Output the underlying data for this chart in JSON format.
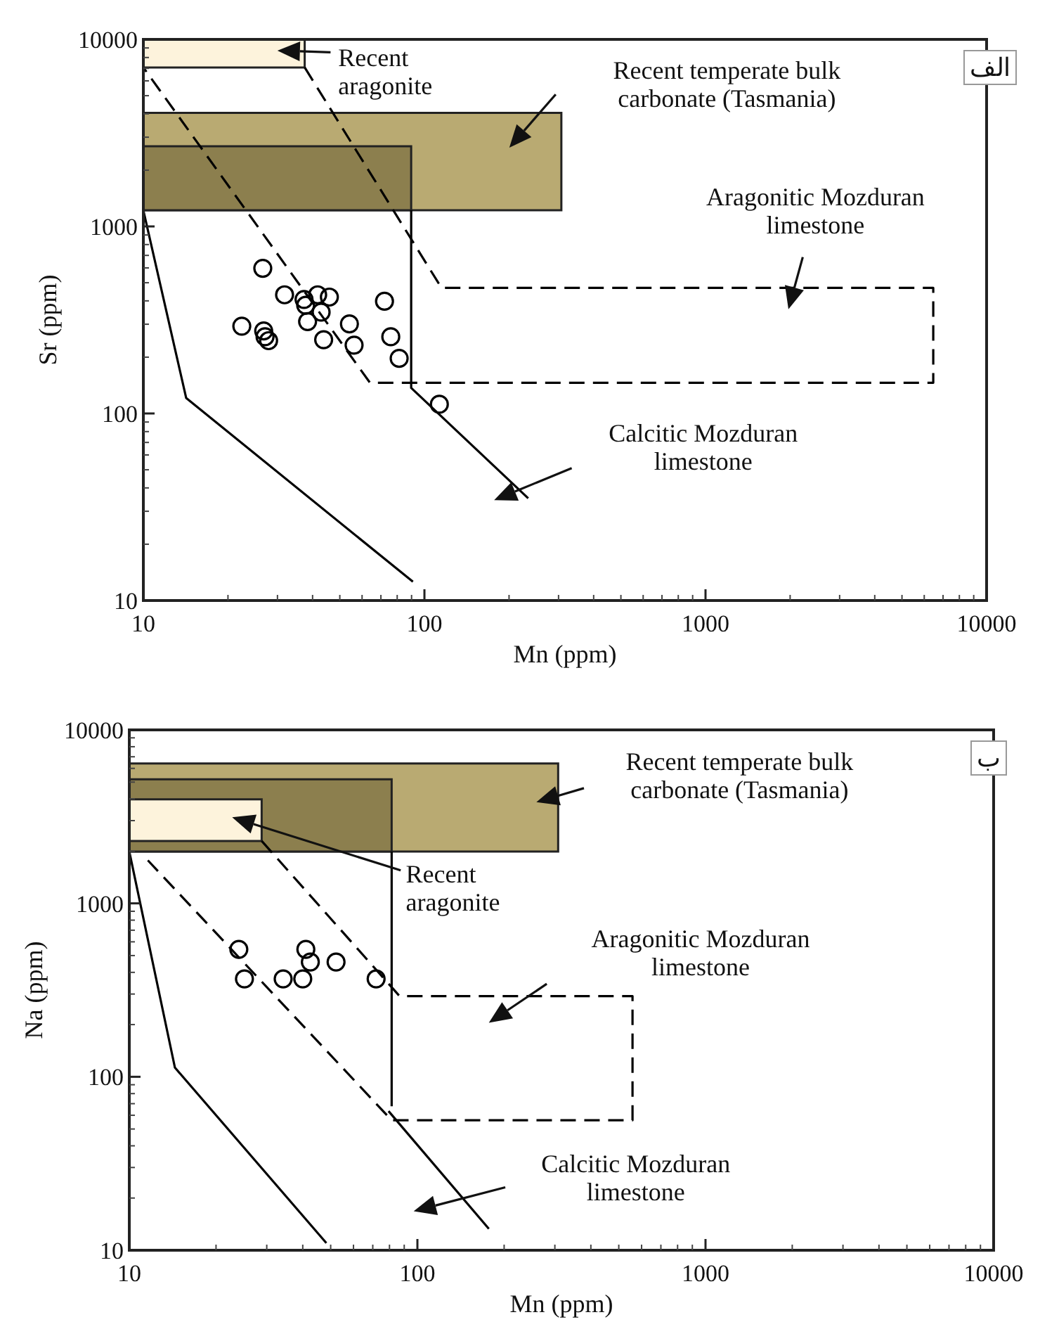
{
  "chart_data": [
    {
      "type": "scatter",
      "xlabel": "Mn (ppm)",
      "ylabel": "Sr (ppm)",
      "log": "xy",
      "xlim": [
        10,
        10000
      ],
      "ylim": [
        10,
        10000
      ],
      "xticks": [
        10,
        100,
        1000,
        10000
      ],
      "yticks": [
        10,
        100,
        1000,
        10000
      ],
      "series": [
        {
          "type": "area",
          "color": "#b9aa72",
          "x": [
            10,
            307,
            307,
            10
          ],
          "values": [
            1220,
            1220,
            4050,
            4050
          ]
        },
        {
          "type": "area",
          "color": "#8c7f4e",
          "x": [
            10,
            89.7,
            89.7,
            10
          ],
          "values": [
            1220,
            1220,
            2680,
            2680
          ]
        },
        {
          "type": "area",
          "color": "#fdf3dc",
          "x": [
            10,
            37.5,
            37.5,
            10
          ],
          "values": [
            7080,
            7080,
            10000,
            10000
          ]
        },
        {
          "type": "line",
          "color": "#000000",
          "line_style": "dashed",
          "x": [
            37.5,
            115,
            6460,
            6460,
            64,
            10
          ],
          "values": [
            7080,
            469,
            469,
            146,
            146,
            7080
          ]
        },
        {
          "type": "line",
          "color": "#000000",
          "line_style": "solid",
          "x": [
            10,
            14.2,
            91
          ],
          "values": [
            1220,
            121,
            12.6
          ]
        },
        {
          "type": "line",
          "color": "#000000",
          "line_style": "solid",
          "x": [
            89.7,
            89.7,
            234
          ],
          "values": [
            1220,
            137,
            35.2
          ]
        },
        {
          "type": "scatter",
          "color": "#000000",
          "marker": "circle",
          "x": [
            26.6,
            31.8,
            22.4,
            26.8,
            27.1,
            27.9,
            37.3,
            37.8,
            38.4,
            41.7,
            45.9,
            42.9,
            43.8,
            54.1,
            56.2,
            72.1,
            75.9,
            81.3,
            113
          ],
          "values": [
            597,
            431,
            293,
            276,
            257,
            245,
            407,
            379,
            310,
            431,
            419,
            348,
            248,
            301,
            232,
            398,
            257,
            197,
            112
          ]
        }
      ],
      "annotations": [
        "Recent aragonite",
        "Recent temperate bulk carbonate (Tasmania)",
        "Aragonitic Mozduran limestone",
        "Calcitic Mozduran limestone",
        "الف"
      ]
    },
    {
      "type": "scatter",
      "xlabel": "Mn (ppm)",
      "ylabel": "Na (ppm)",
      "log": "xy",
      "xlim": [
        10,
        10000
      ],
      "ylim": [
        10,
        10000
      ],
      "xticks": [
        10,
        100,
        1000,
        10000
      ],
      "yticks": [
        10,
        100,
        1000,
        10000
      ],
      "series": [
        {
          "type": "area",
          "color": "#b9aa72",
          "x": [
            10,
            308,
            308,
            10
          ],
          "values": [
            1990,
            1990,
            6410,
            6410
          ]
        },
        {
          "type": "area",
          "color": "#8c7f4e",
          "x": [
            10,
            81.4,
            81.4,
            10
          ],
          "values": [
            1990,
            1990,
            5190,
            5190
          ]
        },
        {
          "type": "area",
          "color": "#fdf3dc",
          "x": [
            10,
            28.8,
            28.8,
            10
          ],
          "values": [
            2290,
            2290,
            3980,
            3980
          ]
        },
        {
          "type": "line",
          "color": "#000000",
          "line_style": "dashed",
          "x": [
            28.8,
            86.7,
            558,
            558,
            81.4,
            11.6
          ],
          "values": [
            2290,
            292,
            292,
            56.2,
            56.2,
            1770
          ]
        },
        {
          "type": "line",
          "color": "#000000",
          "line_style": "solid",
          "x": [
            10,
            14.4,
            48.3
          ],
          "values": [
            1990,
            113,
            11.0
          ]
        },
        {
          "type": "line",
          "color": "#000000",
          "line_style": "solid",
          "x": [
            81.4,
            81.4
          ],
          "values": [
            1990,
            67.6
          ]
        },
        {
          "type": "line",
          "color": "#000000",
          "line_style": "solid",
          "x": [
            79.4,
            177
          ],
          "values": [
            63.4,
            13.3
          ]
        },
        {
          "type": "scatter",
          "color": "#000000",
          "marker": "circle",
          "x": [
            24.0,
            25.1,
            34.2,
            40.0,
            41.0,
            42.5,
            52.2,
            71.9
          ],
          "values": [
            543,
            367,
            367,
            367,
            543,
            459,
            459,
            367
          ]
        }
      ],
      "annotations": [
        "Recent temperate bulk carbonate (Tasmania)",
        "Recent aragonite",
        "Aragonitic Mozduran limestone",
        "Calcitic Mozduran limestone",
        "ب"
      ]
    }
  ]
}
